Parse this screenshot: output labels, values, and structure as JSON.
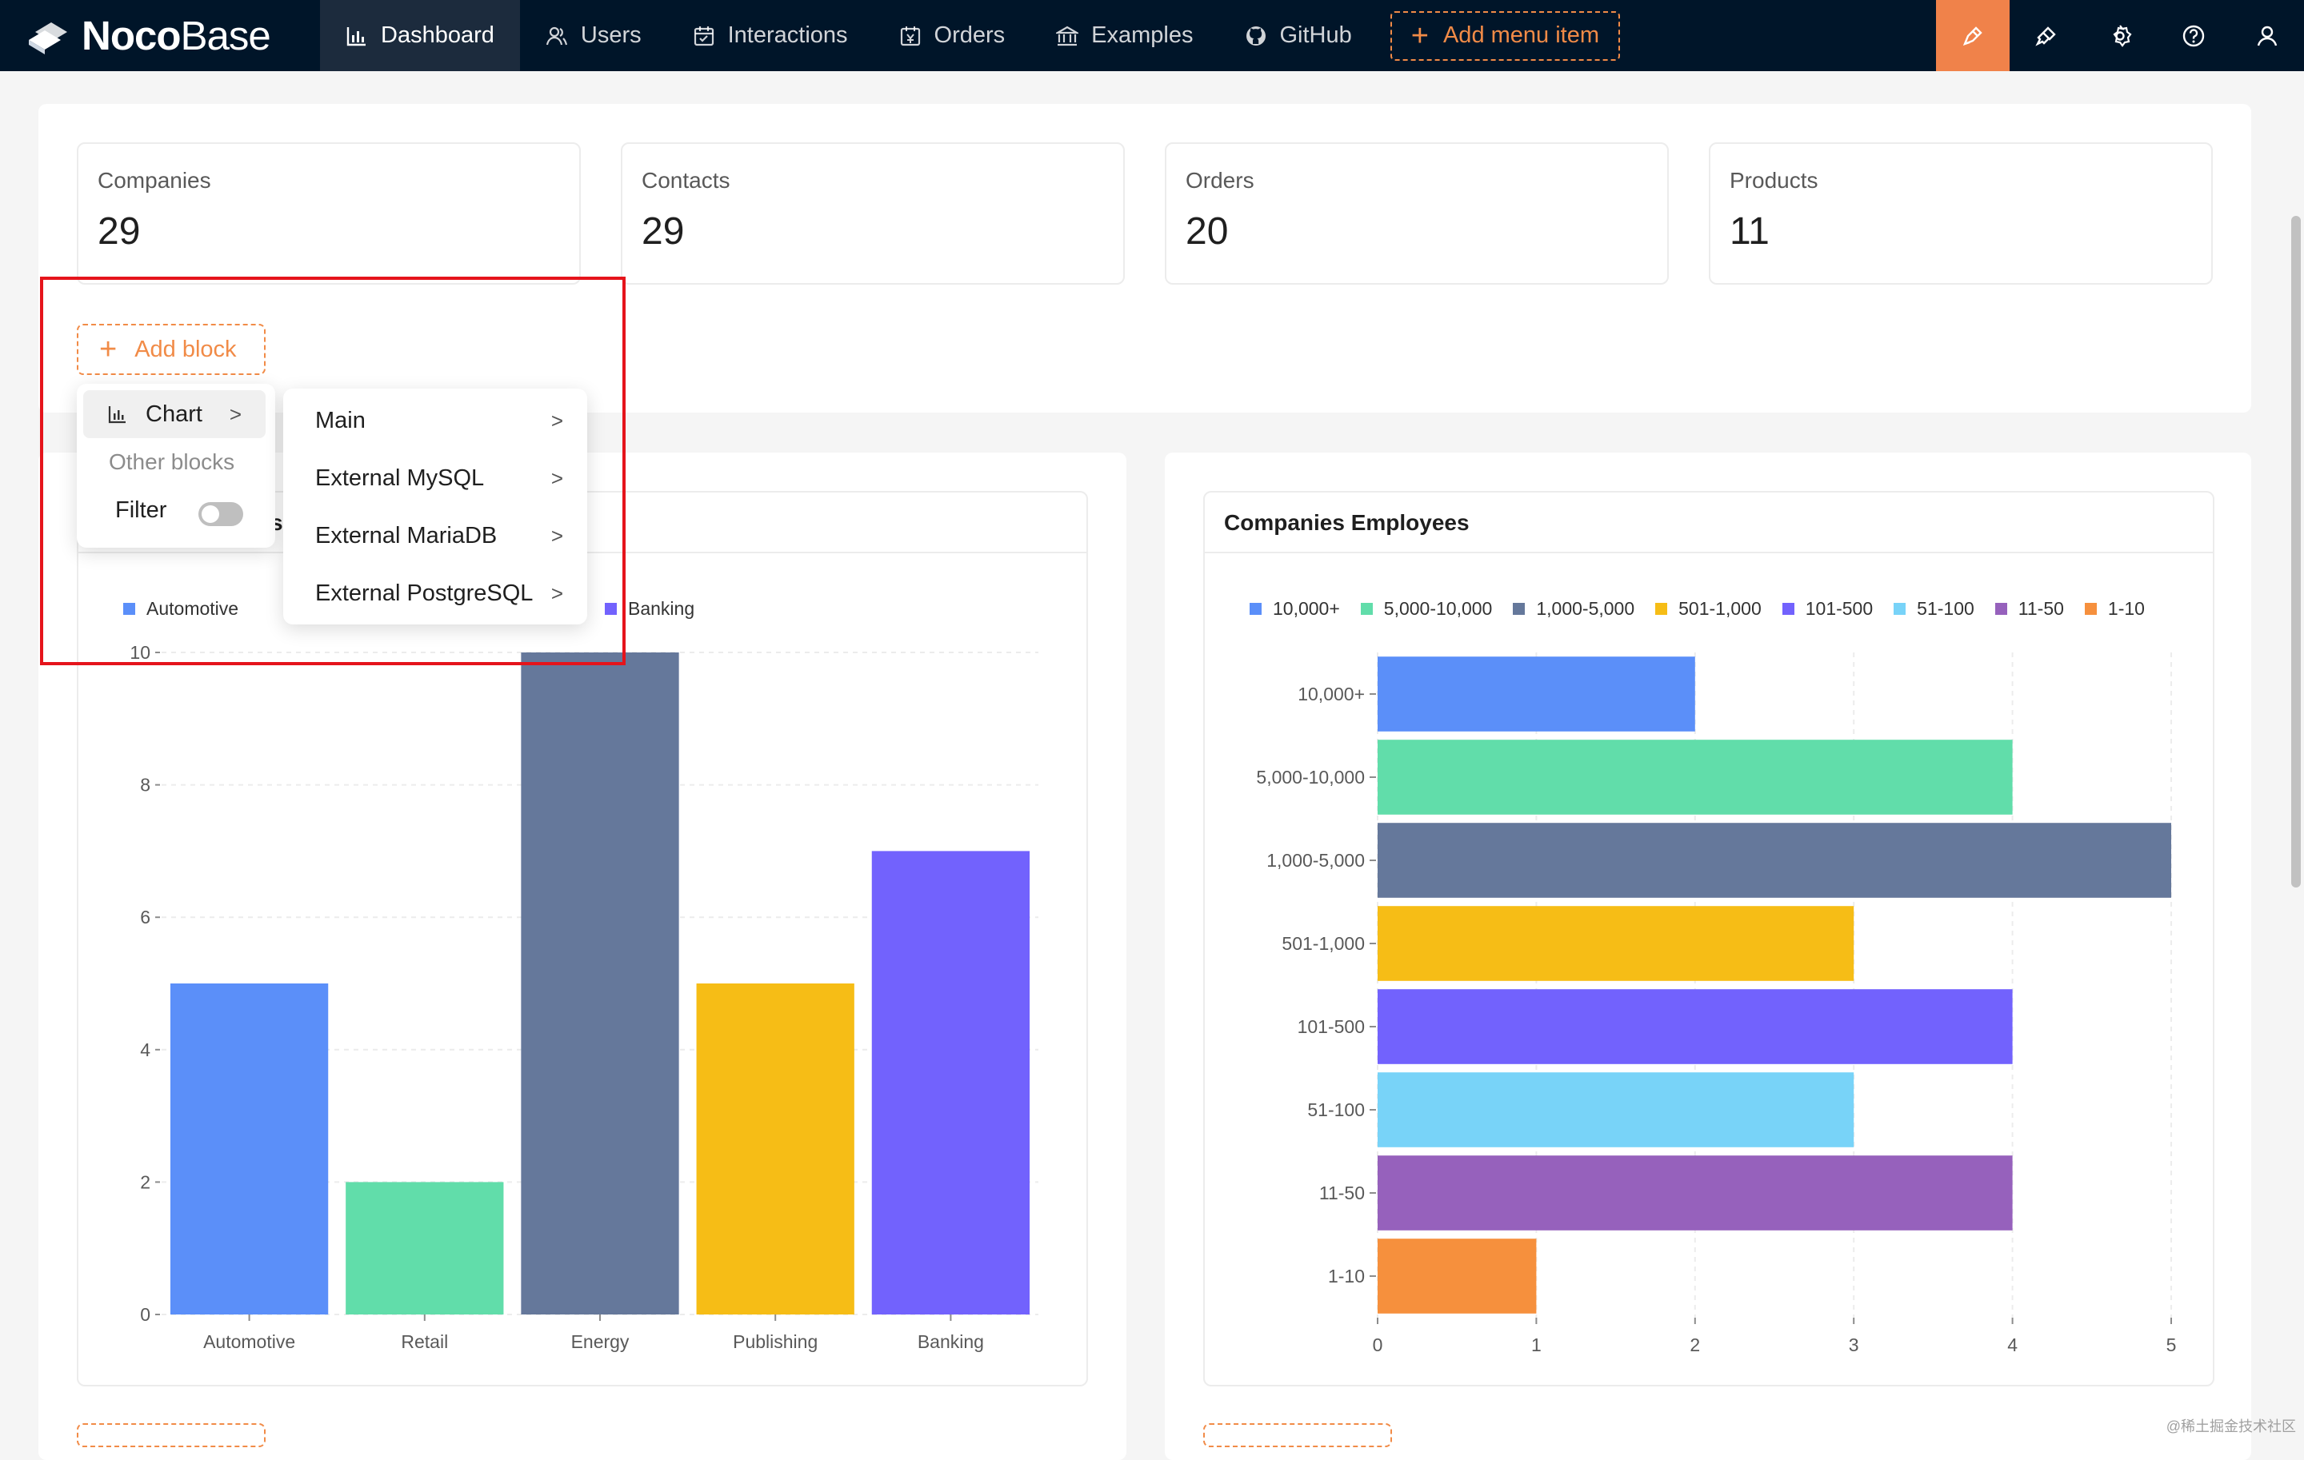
{
  "app": {
    "brand_bold": "Noco",
    "brand_light": "Base"
  },
  "nav": {
    "items": [
      {
        "label": "Dashboard",
        "icon": "bar-chart-icon",
        "active": true
      },
      {
        "label": "Users",
        "icon": "user-group-icon"
      },
      {
        "label": "Interactions",
        "icon": "calendar-icon"
      },
      {
        "label": "Orders",
        "icon": "yen-calendar-icon"
      },
      {
        "label": "Examples",
        "icon": "bank-icon"
      },
      {
        "label": "GitHub",
        "icon": "github-icon"
      }
    ],
    "add_menu_label": "Add menu item"
  },
  "toolbar": {
    "icons": [
      "ui-editor-icon",
      "plugin-manager-icon",
      "settings-icon",
      "help-icon",
      "user-icon"
    ]
  },
  "stats": [
    {
      "label": "Companies",
      "value": "29"
    },
    {
      "label": "Contacts",
      "value": "29"
    },
    {
      "label": "Orders",
      "value": "20"
    },
    {
      "label": "Products",
      "value": "11"
    }
  ],
  "add_block": {
    "label": "Add block"
  },
  "block_menu": {
    "chart_label": "Chart",
    "other_label": "Other blocks",
    "filter_label": "Filter",
    "filter_enabled": false
  },
  "datasource_menu": {
    "items": [
      "Main",
      "External MySQL",
      "External MariaDB",
      "External PostgreSQL"
    ]
  },
  "card_left": {
    "title_visible_suffix": "s"
  },
  "card_right": {
    "title": "Companies Employees"
  },
  "colors": {
    "accent": "#f18b47",
    "topbar": "#001529",
    "highlight_tool": "#f0824a",
    "series": [
      "#5b8ff9",
      "#61ddaa",
      "#65789b",
      "#f6bd16",
      "#7262fd",
      "#78d3f8",
      "#9661bc",
      "#f6903d"
    ]
  },
  "chart_data": [
    {
      "type": "bar",
      "legend_visible": [
        "Automotive",
        "Banking"
      ],
      "categories": [
        "Automotive",
        "Retail",
        "Energy",
        "Publishing",
        "Banking"
      ],
      "values": [
        5,
        2,
        10,
        5,
        7
      ],
      "colors": [
        "#5b8ff9",
        "#61ddaa",
        "#65789b",
        "#f6bd16",
        "#7262fd"
      ],
      "yticks": [
        0,
        2,
        4,
        6,
        8,
        10
      ],
      "ylim": [
        0,
        10
      ],
      "grid": true,
      "legend_position": "top-left"
    },
    {
      "type": "bar",
      "orientation": "horizontal",
      "title": "Companies Employees",
      "categories": [
        "10,000+",
        "5,000-10,000",
        "1,000-5,000",
        "501-1,000",
        "101-500",
        "51-100",
        "11-50",
        "1-10"
      ],
      "values": [
        2,
        4,
        5,
        3,
        4,
        3,
        4,
        1
      ],
      "colors": [
        "#5b8ff9",
        "#61ddaa",
        "#65789b",
        "#f6bd16",
        "#7262fd",
        "#78d3f8",
        "#9661bc",
        "#f6903d"
      ],
      "xticks": [
        0,
        1,
        2,
        3,
        4,
        5
      ],
      "xlim": [
        0,
        5
      ],
      "grid": true,
      "legend_position": "top"
    }
  ],
  "watermark": "@稀土掘金技术社区"
}
